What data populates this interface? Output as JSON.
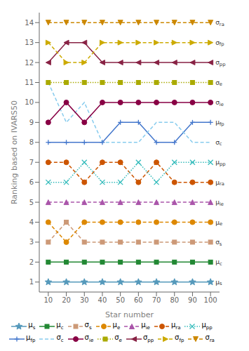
{
  "chart_data": {
    "type": "line",
    "xlabel": "Star number",
    "ylabel": "Ranking based on IVARS50",
    "x": [
      10,
      20,
      30,
      40,
      50,
      60,
      70,
      80,
      90,
      100
    ],
    "xlim": [
      5,
      105
    ],
    "xticks": [
      10,
      20,
      30,
      40,
      50,
      60,
      70,
      80,
      90,
      100
    ],
    "ylim": [
      0.5,
      14.5
    ],
    "yticks": [
      1,
      2,
      3,
      4,
      5,
      6,
      7,
      8,
      9,
      10,
      11,
      12,
      13,
      14
    ],
    "grid": false,
    "legend": "bottom",
    "series": [
      {
        "name": "μs",
        "color": "#5599bb",
        "line_style": "solid",
        "marker": "star",
        "values": [
          1,
          1,
          1,
          1,
          1,
          1,
          1,
          1,
          1,
          1
        ]
      },
      {
        "name": "μc",
        "color": "#228833",
        "line_style": "solid",
        "marker": "square",
        "values": [
          2,
          2,
          2,
          2,
          2,
          2,
          2,
          2,
          2,
          2
        ]
      },
      {
        "name": "σs",
        "color": "#cc9977",
        "line_style": "dashed",
        "marker": "square",
        "values": [
          3,
          4,
          3,
          3,
          3,
          3,
          3,
          3,
          3,
          3
        ]
      },
      {
        "name": "μe",
        "color": "#dd8800",
        "line_style": "dashed",
        "marker": "circle",
        "values": [
          4,
          3,
          4,
          4,
          4,
          4,
          4,
          4,
          4,
          4
        ]
      },
      {
        "name": "μie",
        "color": "#aa55aa",
        "line_style": "dashed",
        "marker": "triangle-up",
        "values": [
          5,
          5,
          5,
          5,
          5,
          5,
          5,
          5,
          5,
          5
        ]
      },
      {
        "name": "μra",
        "color": "#cc5500",
        "line_style": "dashed",
        "marker": "circle",
        "values": [
          7,
          7,
          6,
          7,
          7,
          6,
          7,
          6,
          6,
          6
        ]
      },
      {
        "name": "μpp",
        "color": "#33bbbb",
        "line_style": "dotted",
        "marker": "x",
        "values": [
          6,
          6,
          7,
          6,
          6,
          7,
          6,
          7,
          7,
          7
        ]
      },
      {
        "name": "μfp",
        "color": "#4477cc",
        "line_style": "solid",
        "marker": "plus",
        "values": [
          8,
          8,
          8,
          8,
          9,
          9,
          8,
          8,
          9,
          9
        ]
      },
      {
        "name": "σc",
        "color": "#88ccee",
        "line_style": "dashed",
        "marker": "none",
        "values": [
          11,
          9,
          10,
          8,
          8,
          8,
          9,
          9,
          8,
          8
        ]
      },
      {
        "name": "σie",
        "color": "#880044",
        "line_style": "solid",
        "marker": "circle",
        "values": [
          9,
          10,
          9,
          10,
          10,
          10,
          10,
          10,
          10,
          10
        ]
      },
      {
        "name": "σe",
        "color": "#aaaa00",
        "line_style": "dotted",
        "marker": "square",
        "values": [
          11,
          11,
          11,
          11,
          11,
          11,
          11,
          11,
          11,
          11
        ]
      },
      {
        "name": "σpp",
        "color": "#882244",
        "line_style": "solid",
        "marker": "triangle-left",
        "values": [
          12,
          13,
          13,
          12,
          12,
          12,
          12,
          12,
          12,
          12
        ]
      },
      {
        "name": "σfp",
        "color": "#ccaa00",
        "line_style": "dashed",
        "marker": "triangle-right",
        "values": [
          13,
          12,
          12,
          13,
          13,
          13,
          13,
          13,
          13,
          13
        ]
      },
      {
        "name": "σra",
        "color": "#cc8800",
        "line_style": "dashed",
        "marker": "triangle-down",
        "values": [
          14,
          14,
          14,
          14,
          14,
          14,
          14,
          14,
          14,
          14
        ]
      }
    ],
    "annotations": [
      {
        "text": "μs",
        "x": 100,
        "y": 1
      },
      {
        "text": "μc",
        "x": 100,
        "y": 2
      },
      {
        "text": "σs",
        "x": 100,
        "y": 3
      },
      {
        "text": "μe",
        "x": 100,
        "y": 4
      },
      {
        "text": "μie",
        "x": 100,
        "y": 5
      },
      {
        "text": "μra",
        "x": 100,
        "y": 6
      },
      {
        "text": "μpp",
        "x": 100,
        "y": 7
      },
      {
        "text": "μfp",
        "x": 100,
        "y": 9
      },
      {
        "text": "σc",
        "x": 100,
        "y": 8
      },
      {
        "text": "σie",
        "x": 100,
        "y": 10
      },
      {
        "text": "σe",
        "x": 100,
        "y": 11
      },
      {
        "text": "σpp",
        "x": 100,
        "y": 12
      },
      {
        "text": "σfp",
        "x": 100,
        "y": 13
      },
      {
        "text": "σra",
        "x": 100,
        "y": 14
      }
    ]
  }
}
